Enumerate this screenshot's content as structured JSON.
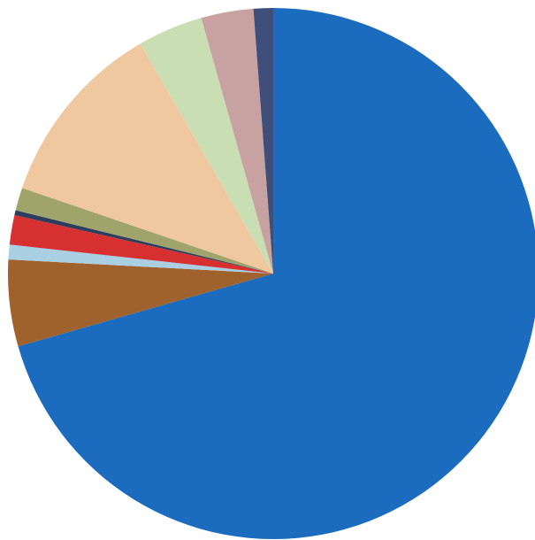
{
  "chart_data": {
    "type": "pie",
    "start_angle_deg": 0,
    "direction": "clockwise",
    "slices": [
      {
        "value": 71.0,
        "color": "#1b6cbf"
      },
      {
        "value": 5.3,
        "color": "#a0622d"
      },
      {
        "value": 0.9,
        "color": "#a9cfe3"
      },
      {
        "value": 1.8,
        "color": "#d63030"
      },
      {
        "value": 0.3,
        "color": "#2d3d5e"
      },
      {
        "value": 1.4,
        "color": "#9fa46a"
      },
      {
        "value": 11.5,
        "color": "#f0c8a0"
      },
      {
        "value": 4.0,
        "color": "#c9dfb3"
      },
      {
        "value": 3.2,
        "color": "#c7a2a0"
      },
      {
        "value": 1.2,
        "color": "#3e4f7c"
      }
    ]
  }
}
